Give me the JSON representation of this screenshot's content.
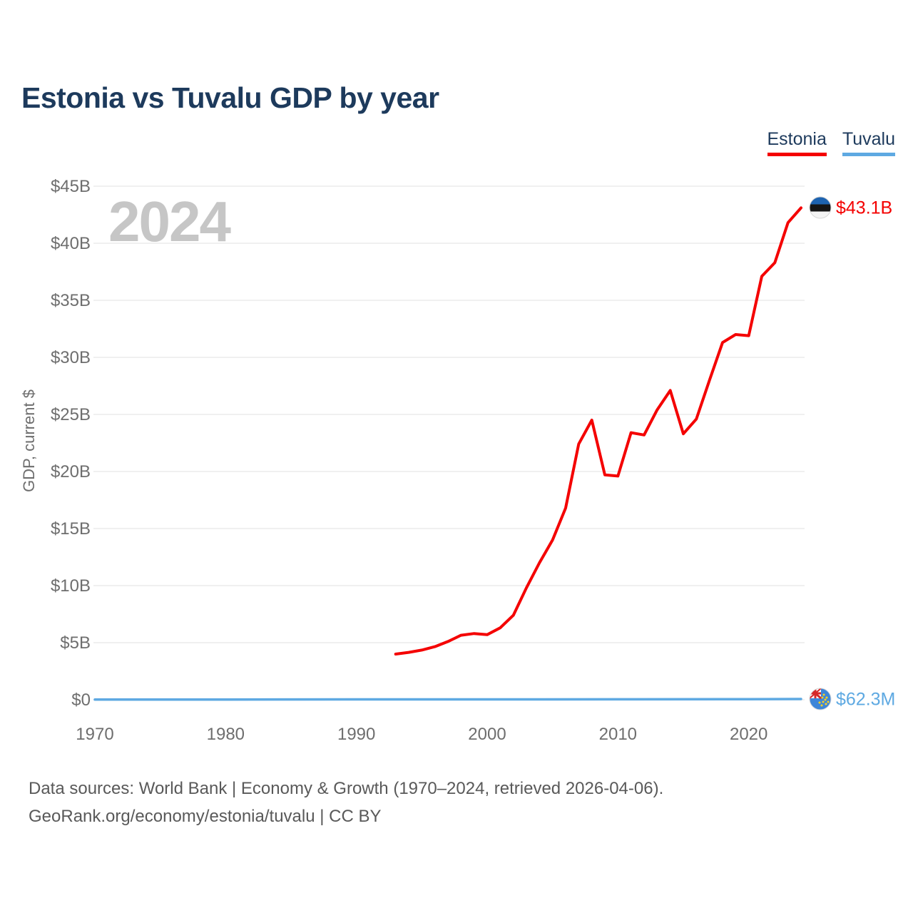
{
  "title": "Estonia vs Tuvalu GDP by year",
  "watermark": "2024",
  "legend": {
    "items": [
      {
        "label": "Estonia",
        "color": "#f40000"
      },
      {
        "label": "Tuvalu",
        "color": "#5ea9e2"
      }
    ]
  },
  "footer": {
    "line1": "Data sources: World Bank | Economy & Growth (1970–2024, retrieved 2026-04-06).",
    "line2": "GeoRank.org/economy/estonia/tuvalu | CC BY"
  },
  "colors": {
    "title": "#1d3a5c",
    "estonia_line": "#f40000",
    "tuvalu_line": "#5ea9e2",
    "tick_label": "#6e6e6e",
    "gridline": "#ebebeb",
    "watermark": "#c6c6c6",
    "footer_text": "#595959",
    "estonia_flag_blue": "#1d63b0",
    "estonia_flag_black": "#151515",
    "estonia_flag_white": "#f4f4f4",
    "tuvalu_flag_blue": "#3e86d8",
    "flag_red": "#d62828",
    "star_yellow": "#ffd21e"
  },
  "chart_data": {
    "type": "line",
    "title": "Estonia vs Tuvalu GDP by year",
    "xlabel": "",
    "ylabel": "GDP, current $",
    "xlim": [
      1970,
      2024
    ],
    "ylim": [
      0,
      45
    ],
    "grid": true,
    "legend_position": "top-right",
    "x_ticks": [
      1970,
      1980,
      1990,
      2000,
      2010,
      2020
    ],
    "y_ticks": [
      {
        "value": 0,
        "label": "$0"
      },
      {
        "value": 5,
        "label": "$5B"
      },
      {
        "value": 10,
        "label": "$10B"
      },
      {
        "value": 15,
        "label": "$15B"
      },
      {
        "value": 20,
        "label": "$20B"
      },
      {
        "value": 25,
        "label": "$25B"
      },
      {
        "value": 30,
        "label": "$30B"
      },
      {
        "value": 35,
        "label": "$35B"
      },
      {
        "value": 40,
        "label": "$40B"
      },
      {
        "value": 45,
        "label": "$45B"
      }
    ],
    "unit": "billions USD",
    "series": [
      {
        "name": "Estonia",
        "color": "#f40000",
        "end_label": "$43.1B",
        "flag": "estonia",
        "points": [
          [
            1993,
            4.0
          ],
          [
            1994,
            4.15
          ],
          [
            1995,
            4.35
          ],
          [
            1996,
            4.65
          ],
          [
            1997,
            5.1
          ],
          [
            1998,
            5.65
          ],
          [
            1999,
            5.8
          ],
          [
            2000,
            5.7
          ],
          [
            2001,
            6.3
          ],
          [
            2002,
            7.4
          ],
          [
            2003,
            9.8
          ],
          [
            2004,
            12.0
          ],
          [
            2005,
            14.0
          ],
          [
            2006,
            16.8
          ],
          [
            2007,
            22.4
          ],
          [
            2008,
            24.5
          ],
          [
            2009,
            19.7
          ],
          [
            2010,
            19.6
          ],
          [
            2011,
            23.4
          ],
          [
            2012,
            23.2
          ],
          [
            2013,
            25.4
          ],
          [
            2014,
            27.1
          ],
          [
            2015,
            23.3
          ],
          [
            2016,
            24.6
          ],
          [
            2017,
            28.0
          ],
          [
            2018,
            31.3
          ],
          [
            2019,
            32.0
          ],
          [
            2020,
            31.9
          ],
          [
            2021,
            37.1
          ],
          [
            2022,
            38.3
          ],
          [
            2023,
            41.8
          ],
          [
            2024,
            43.1
          ]
        ]
      },
      {
        "name": "Tuvalu",
        "color": "#5ea9e2",
        "end_label": "$62.3M",
        "flag": "tuvalu",
        "points": [
          [
            1970,
            0.02
          ],
          [
            1980,
            0.02
          ],
          [
            1990,
            0.03
          ],
          [
            2000,
            0.03
          ],
          [
            2010,
            0.04
          ],
          [
            2020,
            0.05
          ],
          [
            2024,
            0.0623
          ]
        ]
      }
    ]
  }
}
